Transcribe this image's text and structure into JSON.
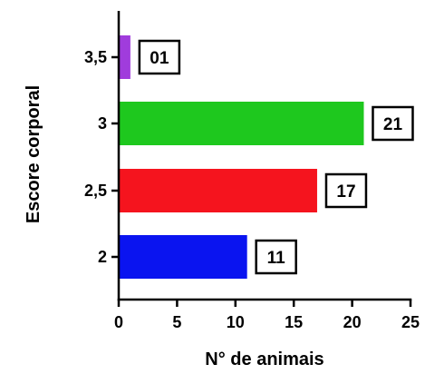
{
  "chart_data": {
    "type": "bar",
    "orientation": "horizontal",
    "categories": [
      "2",
      "2,5",
      "3",
      "3,5"
    ],
    "values": [
      11,
      17,
      21,
      1
    ],
    "data_labels": [
      "11",
      "17",
      "21",
      "01"
    ],
    "colors": [
      "#0a14f0",
      "#f5141e",
      "#1ec81e",
      "#a03cdc"
    ],
    "xlabel": "N° de animais",
    "ylabel": "Escore corporal",
    "xlim": [
      0,
      25
    ],
    "xticks": [
      "0",
      "5",
      "10",
      "15",
      "20",
      "25"
    ],
    "grid": false,
    "legend": "none"
  }
}
